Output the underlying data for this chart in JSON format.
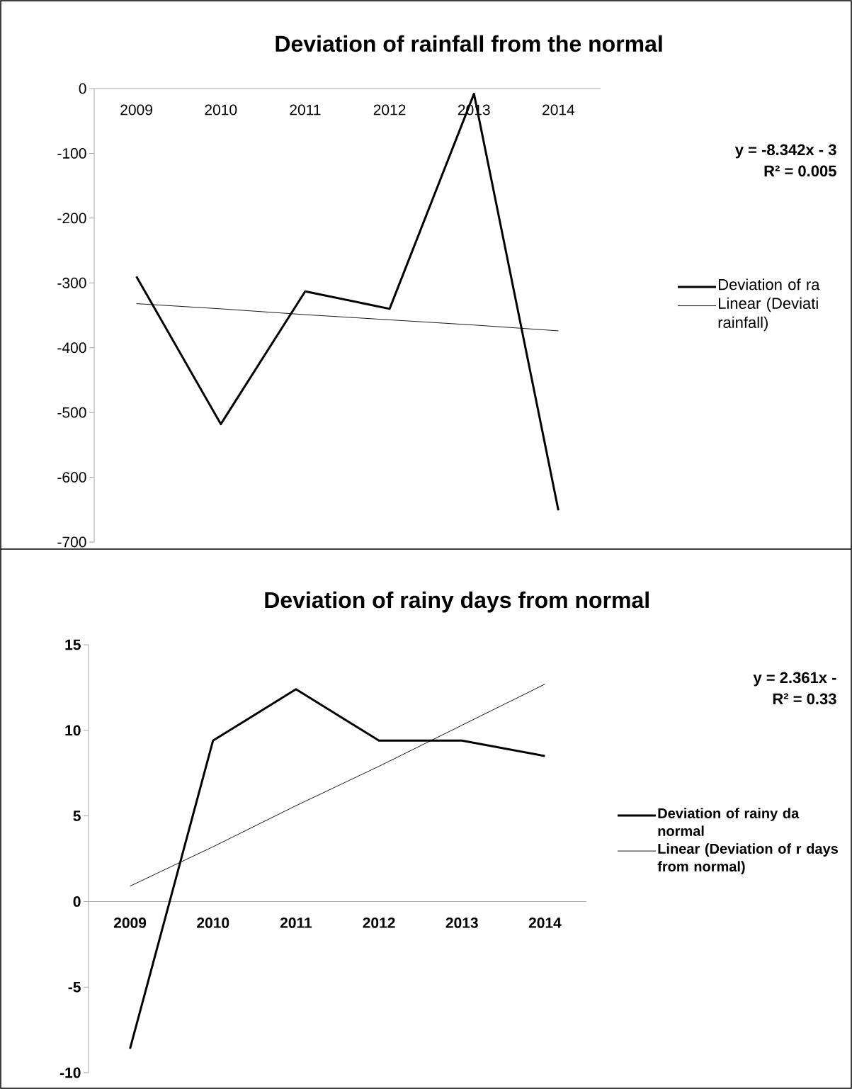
{
  "chart_data": [
    {
      "type": "line",
      "title": "Deviation of rainfall from the normal",
      "categories": [
        "2009",
        "2010",
        "2011",
        "2012",
        "2013",
        "2014"
      ],
      "series": [
        {
          "name": "Deviation of ra",
          "color": "#000000",
          "values": [
            -290,
            -518,
            -313,
            -340,
            -8,
            -651
          ]
        },
        {
          "name": "Linear (Deviati rainfall)",
          "type": "line",
          "color": "#000000",
          "values": [
            -332,
            -340,
            -349,
            -357,
            -365,
            -374
          ]
        }
      ],
      "ylim": [
        -700,
        0
      ],
      "yticks": [
        -700,
        -600,
        -500,
        -400,
        -300,
        -200,
        -100,
        0
      ],
      "legend": "right",
      "annotations": [
        "y = -8.342x - 3",
        "R² = 0.005"
      ]
    },
    {
      "type": "line",
      "title": "Deviation  of rainy days from normal",
      "categories": [
        "2009",
        "2010",
        "2011",
        "2012",
        "2013",
        "2014"
      ],
      "series": [
        {
          "name": "Deviation  of rainy da normal",
          "color": "#000000",
          "values": [
            -8.6,
            9.4,
            12.4,
            9.4,
            9.4,
            8.5
          ]
        },
        {
          "name": "Linear (Deviation  of r days from normal)",
          "type": "line",
          "color": "#000000",
          "values": [
            0.9,
            3.2,
            5.6,
            7.9,
            10.3,
            12.7
          ]
        }
      ],
      "ylim": [
        -10,
        15
      ],
      "yticks": [
        -10,
        -5,
        0,
        5,
        10,
        15
      ],
      "legend": "right",
      "annotations": [
        "y = 2.361x -",
        "R² = 0.33"
      ]
    }
  ]
}
